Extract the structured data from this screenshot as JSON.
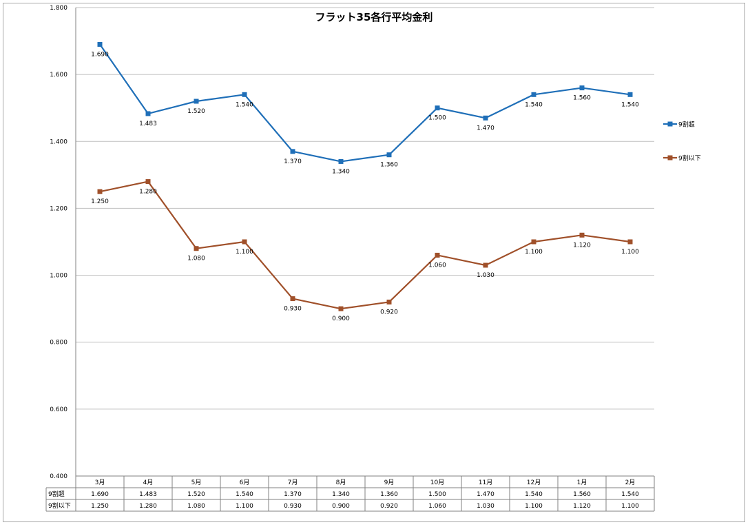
{
  "chart_data": {
    "type": "line",
    "title": "フラット35各行平均金利",
    "xlabel": "",
    "ylabel": "",
    "categories": [
      "3月",
      "4月",
      "5月",
      "6月",
      "7月",
      "8月",
      "9月",
      "10月",
      "11月",
      "12月",
      "1月",
      "2月"
    ],
    "ylim": [
      0.4,
      1.8
    ],
    "yticks": [
      "0.400",
      "0.600",
      "0.800",
      "1.000",
      "1.200",
      "1.400",
      "1.600",
      "1.800"
    ],
    "grid": true,
    "legend": "right",
    "series": [
      {
        "name": "9割超",
        "color": "#1f6fb8",
        "values": [
          1.69,
          1.483,
          1.52,
          1.54,
          1.37,
          1.34,
          1.36,
          1.5,
          1.47,
          1.54,
          1.56,
          1.54
        ],
        "labels": [
          "1.690",
          "1.483",
          "1.520",
          "1.540",
          "1.370",
          "1.340",
          "1.360",
          "1.500",
          "1.470",
          "1.540",
          "1.560",
          "1.540"
        ]
      },
      {
        "name": "9割以下",
        "color": "#a0502a",
        "values": [
          1.25,
          1.28,
          1.08,
          1.1,
          0.93,
          0.9,
          0.92,
          1.06,
          1.03,
          1.1,
          1.12,
          1.1
        ],
        "labels": [
          "1.250",
          "1.280",
          "1.080",
          "1.100",
          "0.930",
          "0.900",
          "0.920",
          "1.060",
          "1.030",
          "1.100",
          "1.120",
          "1.100"
        ]
      }
    ],
    "data_table": true
  }
}
